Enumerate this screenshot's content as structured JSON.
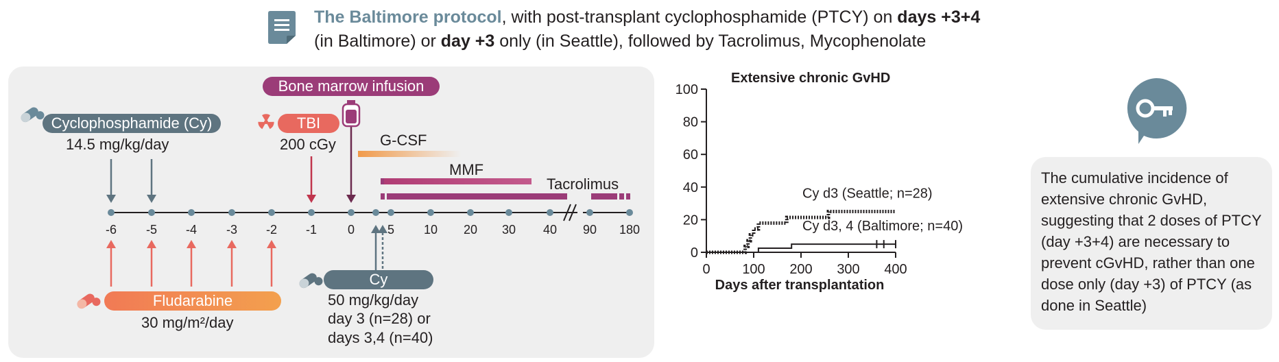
{
  "header": {
    "protocol_name": "The Baltimore protocol",
    "line1_a": ", with post-transplant cyclophosphamide (PTCY) on ",
    "line1_bold": "days +3+4",
    "line2_a": "(in Baltimore) or ",
    "line2_bold": "day +3",
    "line2_b": " only (in Seattle), followed by Tacrolimus, Mycophenolate",
    "icon": "document-icon"
  },
  "schema": {
    "bone_marrow": "Bone marrow infusion",
    "cy_pre": "Cyclophosphamide (Cy)",
    "cy_pre_dose": "14.5 mg/kg/day",
    "tbi": "TBI",
    "tbi_dose": "200 cGy",
    "gcsf": "G-CSF",
    "mmf": "MMF",
    "tacrolimus": "Tacrolimus",
    "flu": "Fludarabine",
    "flu_dose": "30 mg/m²/day",
    "cy_post": "Cy",
    "cy_post_dose1": "50 mg/kg/day",
    "cy_post_dose2": "day 3 (n=28) or",
    "cy_post_dose3": "days 3,4 (n=40)",
    "ticks": [
      "-6",
      "-5",
      "-4",
      "-3",
      "-2",
      "-1",
      "0",
      "5",
      "10",
      "20",
      "30",
      "40",
      "90",
      "180"
    ],
    "colors": {
      "slate": "#5e7480",
      "purple": "#9b3c78",
      "coral": "#e8695f",
      "orange": "#f19a4a"
    }
  },
  "chart_data": {
    "type": "line",
    "title": "Extensive chronic GvHD",
    "xlabel": "Days after transplantation",
    "ylabel": "",
    "xlim": [
      0,
      400
    ],
    "ylim": [
      0,
      100
    ],
    "xticks": [
      "0",
      "100",
      "200",
      "300",
      "400"
    ],
    "yticks": [
      "0",
      "20",
      "40",
      "60",
      "80",
      "100"
    ],
    "series": [
      {
        "name": "Cy d3 (Seattle; n=28)",
        "style": "dotted",
        "x": [
          0,
          75,
          82,
          88,
          93,
          100,
          110,
          130,
          170,
          190,
          240,
          258,
          400
        ],
        "y": [
          0,
          0,
          3.6,
          7.1,
          10.7,
          14.3,
          17.9,
          17.9,
          21.4,
          21.4,
          21.4,
          25,
          25
        ]
      },
      {
        "name": "Cy d3, 4 (Baltimore; n=40)",
        "style": "solid",
        "x": [
          0,
          80,
          110,
          180,
          400
        ],
        "y": [
          0,
          0,
          2.5,
          5,
          5
        ]
      }
    ]
  },
  "note": {
    "text": "The cumulative incidence of extensive chronic GvHD, suggesting that 2 doses of PTCY (day +3+4) are necessary to prevent cGvHD, rather than one dose only (day +3) of PTCY (as done in Seattle)",
    "icon": "key-icon"
  }
}
